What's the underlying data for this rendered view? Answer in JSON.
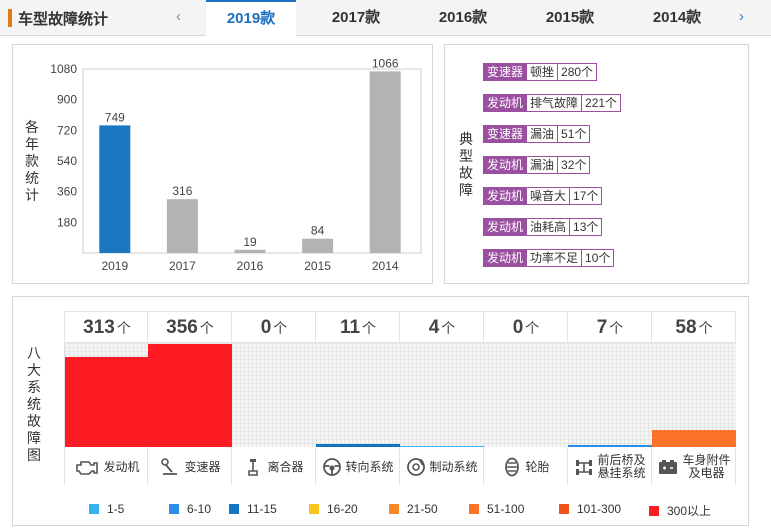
{
  "topbar": {
    "title": "车型故障统计",
    "prev_arrow": "‹",
    "next_arrow": "›",
    "tabs": [
      {
        "label": "2019款",
        "active": true
      },
      {
        "label": "2017款",
        "active": false
      },
      {
        "label": "2016款",
        "active": false
      },
      {
        "label": "2015款",
        "active": false
      },
      {
        "label": "2014款",
        "active": false
      }
    ],
    "accent": "#1a6fbf",
    "brand_color": "#e07b1a"
  },
  "chart_panel": {
    "y_title": [
      "各",
      "年",
      "款",
      "统",
      "计"
    ]
  },
  "chart_data": {
    "type": "bar",
    "categories": [
      "2019",
      "2017",
      "2016",
      "2015",
      "2014"
    ],
    "values": [
      749,
      316,
      19,
      84,
      1066
    ],
    "yticks": [
      180,
      360,
      540,
      720,
      900,
      1080
    ],
    "ylim": [
      0,
      1080
    ],
    "highlight_index": 0,
    "highlight_color": "#1a78c2",
    "bar_color": "#b3b3b3",
    "title": "",
    "xlabel": "",
    "ylabel": "各年款统计",
    "grid": false
  },
  "faults_panel": {
    "title": [
      "典",
      "型",
      "故",
      "障"
    ],
    "items": [
      {
        "system": "变速器",
        "type": "顿挫",
        "count": "280个"
      },
      {
        "system": "发动机",
        "type": "排气故障",
        "count": "221个"
      },
      {
        "system": "变速器",
        "type": "漏油",
        "count": "51个"
      },
      {
        "system": "发动机",
        "type": "漏油",
        "count": "32个"
      },
      {
        "system": "发动机",
        "type": "噪音大",
        "count": "17个"
      },
      {
        "system": "发动机",
        "type": "油耗高",
        "count": "13个"
      },
      {
        "system": "发动机",
        "type": "功率不足",
        "count": "10个"
      }
    ]
  },
  "systems_panel": {
    "title": [
      "八",
      "大",
      "系",
      "统",
      "故",
      "障",
      "图"
    ],
    "unit": "个",
    "fill_max": 360,
    "systems": [
      {
        "count": "313",
        "value": 313,
        "label": "发动机",
        "icon": "engine-icon",
        "color": "#fd1c24"
      },
      {
        "count": "356",
        "value": 356,
        "label": "变速器",
        "icon": "gear-shifter-icon",
        "color": "#fd1c24"
      },
      {
        "count": "0",
        "value": 0,
        "label": "离合器",
        "icon": "clutch-pedal-icon",
        "color": "#2aaef0"
      },
      {
        "count": "11",
        "value": 11,
        "label": "转向系统",
        "icon": "steering-wheel-icon",
        "color": "#1476c0"
      },
      {
        "count": "4",
        "value": 4,
        "label": "制动系统",
        "icon": "brake-disc-icon",
        "color": "#36b2f3"
      },
      {
        "count": "0",
        "value": 0,
        "label": "轮胎",
        "icon": "tire-icon",
        "color": "#2aaef0"
      },
      {
        "count": "7",
        "value": 7,
        "label": "前后桥及悬挂系统",
        "label_lines": [
          "前后桥及",
          "悬挂系统"
        ],
        "icon": "axle-suspension-icon",
        "color": "#2e8de8"
      },
      {
        "count": "58",
        "value": 58,
        "label": "车身附件及电器",
        "label_lines": [
          "车身附件",
          "及电器"
        ],
        "icon": "body-electrics-icon",
        "color": "#fa7328"
      }
    ],
    "legend": [
      {
        "label": "1-5",
        "color": "#36b2f3"
      },
      {
        "label": "6-10",
        "color": "#2e8de8"
      },
      {
        "label": "11-15",
        "color": "#1476c0"
      },
      {
        "label": "16-20",
        "color": "#f7c61c"
      },
      {
        "label": "21-50",
        "color": "#f68a26"
      },
      {
        "label": "51-100",
        "color": "#fa7328"
      },
      {
        "label": "101-300",
        "color": "#f2531d"
      },
      {
        "label": "300以上",
        "color": "#fd1c24"
      }
    ]
  }
}
